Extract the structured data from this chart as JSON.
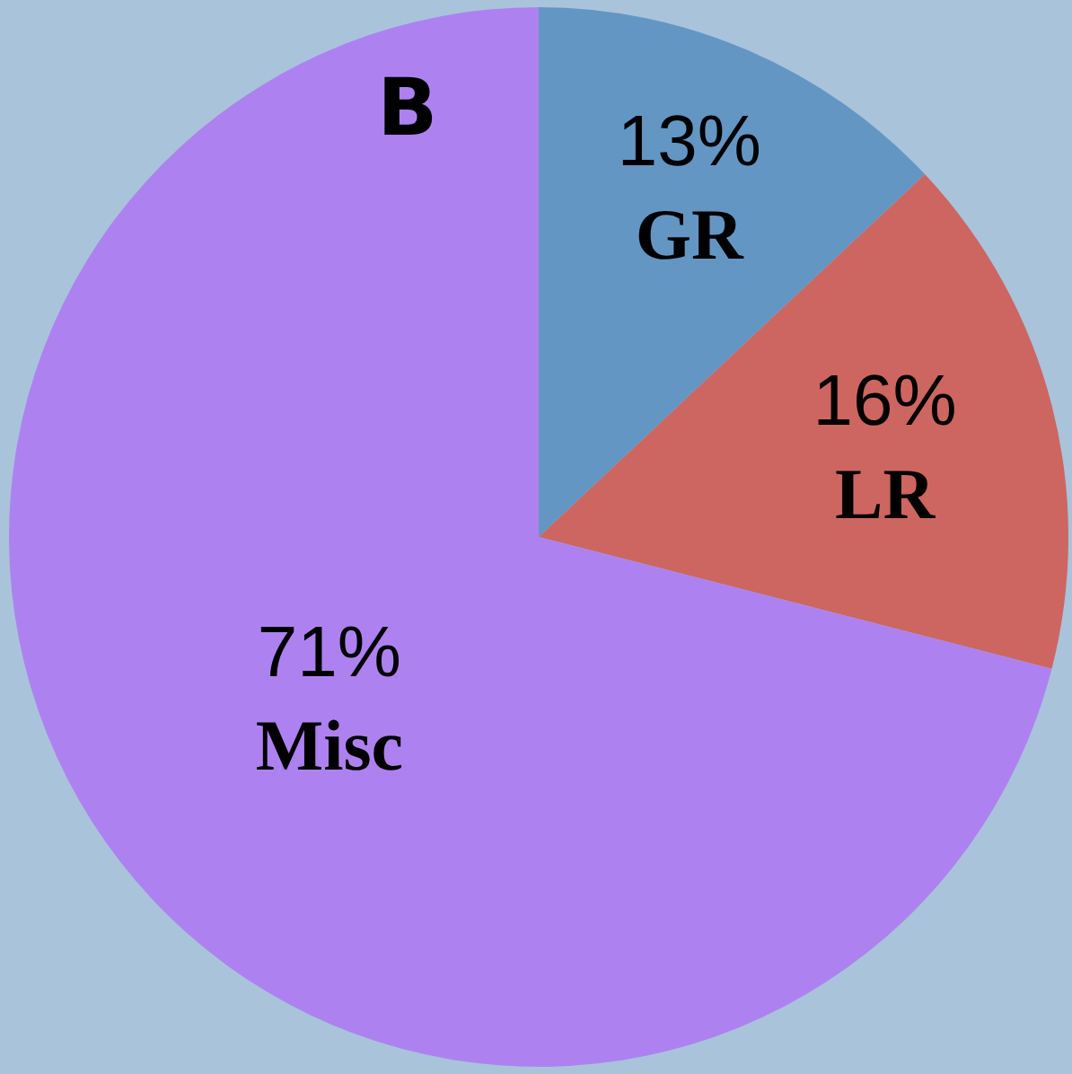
{
  "chart_data": {
    "type": "pie",
    "title": "B",
    "categories": [
      "GR",
      "LR",
      "Misc"
    ],
    "values": [
      13,
      16,
      71
    ],
    "value_labels": [
      "13%",
      "16%",
      "71%"
    ],
    "colors": [
      "#6496c4",
      "#cd6660",
      "#ad82f0"
    ]
  }
}
